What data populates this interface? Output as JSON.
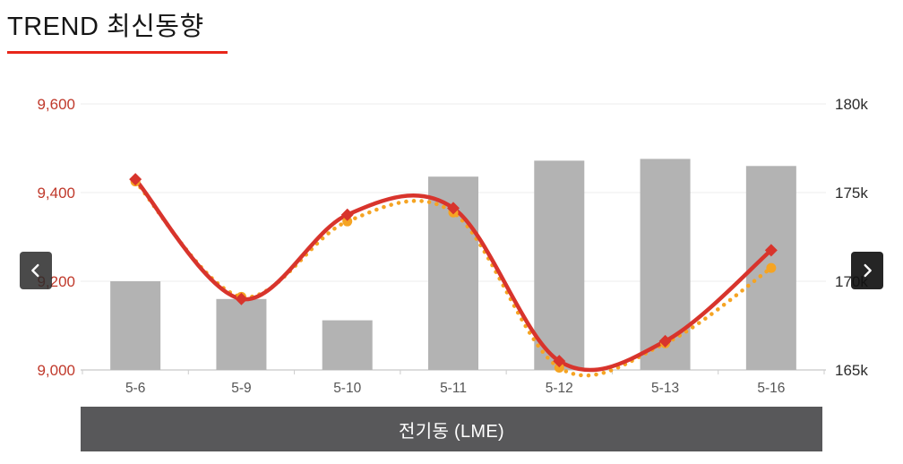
{
  "header": {
    "title": "TREND 최신동향"
  },
  "theme": {
    "accent": "#e8261a",
    "caption_bg": "#58585a",
    "grid_color": "#ececec",
    "baseline_color": "#d2d2d2",
    "category_label_color": "#555555"
  },
  "carousel": {
    "prev_icon": "chevron-left",
    "next_icon": "chevron-right"
  },
  "footer": {
    "caption": "전기동 (LME)"
  },
  "chart_data": {
    "type": "combo",
    "title": "전기동 (LME)",
    "categories": [
      "5-6",
      "5-9",
      "5-10",
      "5-11",
      "5-12",
      "5-13",
      "5-16"
    ],
    "series": [
      {
        "name": "price-solid",
        "type": "line",
        "style": "solid",
        "axis": "left",
        "color": "#d8342c",
        "marker": "diamond",
        "values": [
          9430,
          9160,
          9350,
          9365,
          9020,
          9065,
          9270
        ]
      },
      {
        "name": "price-dotted",
        "type": "line",
        "style": "dotted",
        "axis": "left",
        "color": "#f5a423",
        "marker": "circle",
        "values": [
          9425,
          9165,
          9335,
          9355,
          9005,
          9060,
          9230
        ]
      },
      {
        "name": "volume-bars",
        "type": "bar",
        "axis": "right",
        "color": "#b3b3b3",
        "values": [
          170000,
          169000,
          167800,
          175900,
          176800,
          176900,
          176500
        ]
      }
    ],
    "left_axis": {
      "min": 9000,
      "max": 9600,
      "tick_values": [
        9000,
        9200,
        9400,
        9600
      ],
      "ticks": [
        "9,000",
        "9,200",
        "9,400",
        "9,600"
      ],
      "color": "#c0392b"
    },
    "right_axis": {
      "min": 165000,
      "max": 180000,
      "tick_values": [
        165000,
        170000,
        175000,
        180000
      ],
      "ticks": [
        "165k",
        "170k",
        "175k",
        "180k"
      ],
      "color": "#2b2b2b"
    },
    "grid": true,
    "legend": "none"
  }
}
